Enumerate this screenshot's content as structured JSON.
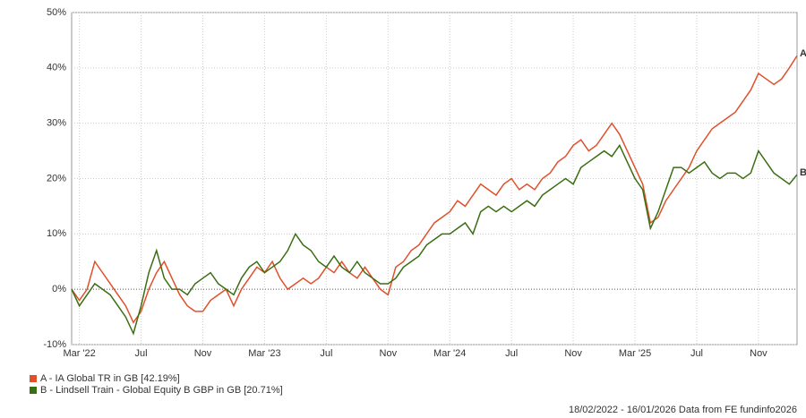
{
  "chart_data": {
    "type": "line",
    "categories": [
      null,
      "Mar '22",
      null,
      null,
      null,
      null,
      null,
      null,
      null,
      "Jul",
      null,
      null,
      null,
      null,
      null,
      null,
      null,
      "Nov",
      null,
      null,
      null,
      null,
      null,
      null,
      null,
      "Mar '23",
      null,
      null,
      null,
      null,
      null,
      null,
      null,
      "Jul",
      null,
      null,
      null,
      null,
      null,
      null,
      null,
      "Nov",
      null,
      null,
      null,
      null,
      null,
      null,
      null,
      "Mar '24",
      null,
      null,
      null,
      null,
      null,
      null,
      null,
      "Jul",
      null,
      null,
      null,
      null,
      null,
      null,
      null,
      "Nov",
      null,
      null,
      null,
      null,
      null,
      null,
      null,
      "Mar '25",
      null,
      null,
      null,
      null,
      null,
      null,
      null,
      "Jul",
      null,
      null,
      null,
      null,
      null,
      null,
      null,
      "Nov",
      null,
      null,
      null,
      null,
      null
    ],
    "series": [
      {
        "name": "A - IA Global TR in GB [42.19%]",
        "end_label": "A",
        "color": "#e0502a",
        "values": [
          0,
          -2,
          0,
          5,
          3,
          1,
          -1,
          -3,
          -6,
          -4,
          0,
          3,
          5,
          2,
          -1,
          -3,
          -4,
          -4,
          -2,
          -1,
          0,
          -3,
          0,
          2,
          4,
          3,
          5,
          2,
          0,
          1,
          2,
          1,
          2,
          4,
          3,
          5,
          3,
          2,
          4,
          2,
          0,
          -1,
          4,
          5,
          7,
          8,
          10,
          12,
          13,
          14,
          16,
          15,
          17,
          19,
          18,
          17,
          19,
          20,
          18,
          19,
          18,
          20,
          21,
          23,
          24,
          26,
          27,
          25,
          26,
          28,
          30,
          28,
          25,
          22,
          19,
          12,
          13,
          16,
          18,
          20,
          22,
          25,
          27,
          29,
          30,
          31,
          32,
          34,
          36,
          39,
          38,
          37,
          38,
          40,
          42.19
        ]
      },
      {
        "name": "B - Lindsell Train - Global Equity B GBP in GB [20.71%]",
        "end_label": "B",
        "color": "#3a6e12",
        "values": [
          0,
          -3,
          -1,
          1,
          0,
          -1,
          -3,
          -5,
          -8,
          -3,
          3,
          7,
          2,
          0,
          0,
          -1,
          1,
          2,
          3,
          1,
          0,
          -1,
          2,
          4,
          5,
          3,
          4,
          5,
          7,
          10,
          8,
          7,
          5,
          4,
          6,
          4,
          3,
          5,
          3,
          2,
          1,
          1,
          2,
          4,
          5,
          6,
          8,
          9,
          10,
          10,
          11,
          12,
          10,
          14,
          15,
          14,
          15,
          14,
          15,
          16,
          15,
          17,
          18,
          19,
          20,
          19,
          22,
          23,
          24,
          25,
          24,
          26,
          23,
          20,
          18,
          11,
          14,
          18,
          22,
          22,
          21,
          22,
          23,
          21,
          20,
          21,
          21,
          20,
          21,
          25,
          23,
          21,
          20,
          19,
          20.71
        ]
      }
    ],
    "ylim": [
      -10,
      50
    ],
    "yticks": [
      {
        "value": -10,
        "label": "-10%"
      },
      {
        "value": 0,
        "label": "0%"
      },
      {
        "value": 10,
        "label": "10%"
      },
      {
        "value": 20,
        "label": "20%"
      },
      {
        "value": 30,
        "label": "30%"
      },
      {
        "value": 40,
        "label": "40%"
      },
      {
        "value": 50,
        "label": "50%"
      }
    ],
    "grid": true,
    "footer": "18/02/2022 - 16/01/2026 Data from FE fundinfo2026"
  }
}
